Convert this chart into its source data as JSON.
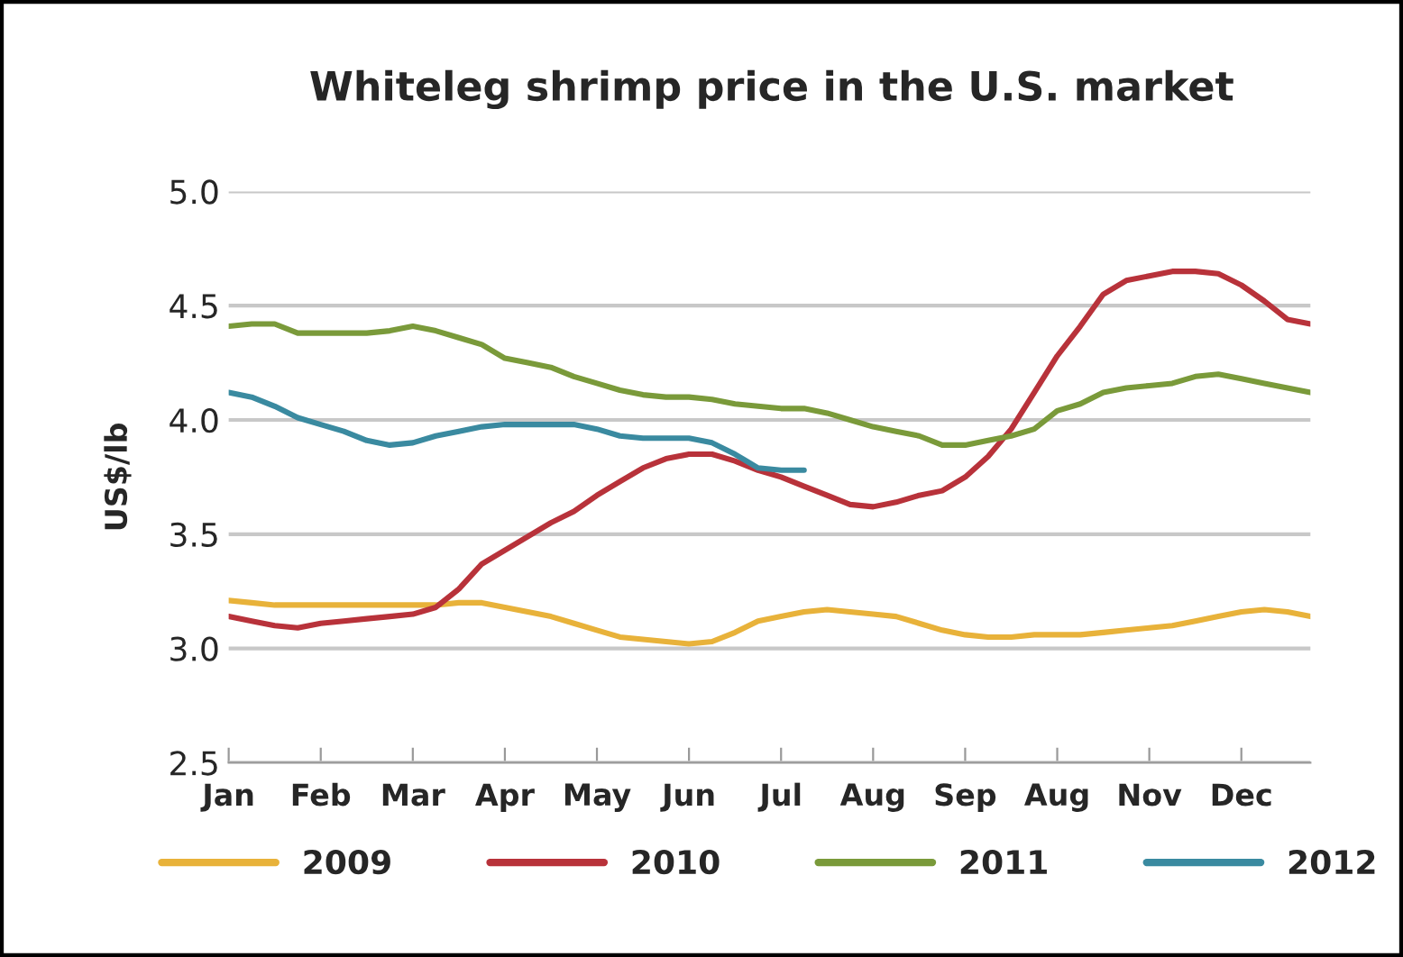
{
  "chart_data": {
    "type": "line",
    "title": "Whiteleg shrimp price in the U.S. market",
    "ylabel": "US$/lb",
    "categories": [
      "Jan",
      null,
      null,
      null,
      "Feb",
      null,
      null,
      null,
      "Mar",
      null,
      null,
      null,
      "Apr",
      null,
      null,
      null,
      "May",
      null,
      null,
      null,
      "Jun",
      null,
      null,
      null,
      "Jul",
      null,
      null,
      null,
      "Aug",
      null,
      null,
      null,
      "Sep",
      null,
      null,
      null,
      "Aug",
      null,
      null,
      null,
      "Nov",
      null,
      null,
      null,
      "Dec",
      null,
      null,
      null
    ],
    "ylim": [
      2.5,
      5.0
    ],
    "yticks": [
      2.5,
      {
        "value": 3,
        "label": "3.0"
      },
      3.5,
      {
        "value": 4,
        "label": "4.0"
      },
      4.5,
      {
        "value": 5,
        "label": "5.0"
      }
    ],
    "grid": "y",
    "legend": "bottom",
    "line_style": "solid",
    "marker": "none",
    "series": [
      {
        "name": "2009",
        "color": "#e8b23a",
        "values": [
          3.21,
          3.2,
          3.19,
          3.19,
          3.19,
          3.19,
          3.19,
          3.19,
          3.19,
          3.19,
          3.2,
          3.2,
          3.18,
          3.16,
          3.14,
          3.11,
          3.08,
          3.05,
          3.04,
          3.03,
          3.02,
          3.03,
          3.07,
          3.12,
          3.14,
          3.16,
          3.17,
          3.16,
          3.15,
          3.14,
          3.11,
          3.08,
          3.06,
          3.05,
          3.05,
          3.06,
          3.06,
          3.06,
          3.07,
          3.08,
          3.09,
          3.1,
          3.12,
          3.14,
          3.16,
          3.17,
          3.16,
          3.14
        ]
      },
      {
        "name": "2010",
        "color": "#b8323a",
        "values": [
          3.14,
          3.12,
          3.1,
          3.09,
          3.11,
          3.12,
          3.13,
          3.14,
          3.15,
          3.18,
          3.26,
          3.37,
          3.43,
          3.49,
          3.55,
          3.6,
          3.67,
          3.73,
          3.79,
          3.83,
          3.85,
          3.85,
          3.82,
          3.78,
          3.75,
          3.71,
          3.67,
          3.63,
          3.62,
          3.64,
          3.67,
          3.69,
          3.75,
          3.84,
          3.96,
          4.12,
          4.28,
          4.41,
          4.55,
          4.61,
          4.63,
          4.65,
          4.65,
          4.64,
          4.59,
          4.52,
          4.44,
          4.42
        ]
      },
      {
        "name": "2011",
        "color": "#7a9a3a",
        "values": [
          4.41,
          4.42,
          4.42,
          4.38,
          4.38,
          4.38,
          4.38,
          4.39,
          4.41,
          4.39,
          4.36,
          4.33,
          4.27,
          4.25,
          4.23,
          4.19,
          4.16,
          4.13,
          4.11,
          4.1,
          4.1,
          4.09,
          4.07,
          4.06,
          4.05,
          4.05,
          4.03,
          4.0,
          3.97,
          3.95,
          3.93,
          3.89,
          3.89,
          3.91,
          3.93,
          3.96,
          4.04,
          4.07,
          4.12,
          4.14,
          4.15,
          4.16,
          4.19,
          4.2,
          4.18,
          4.16,
          4.14,
          4.12
        ]
      },
      {
        "name": "2012",
        "color": "#3a8aa0",
        "values": [
          4.12,
          4.1,
          4.06,
          4.01,
          3.98,
          3.95,
          3.91,
          3.89,
          3.9,
          3.93,
          3.95,
          3.97,
          3.98,
          3.98,
          3.98,
          3.98,
          3.96,
          3.93,
          3.92,
          3.92,
          3.92,
          3.9,
          3.85,
          3.79,
          3.78,
          3.78,
          null,
          null,
          null,
          null,
          null,
          null,
          null,
          null,
          null,
          null,
          null,
          null,
          null,
          null,
          null,
          null,
          null,
          null,
          null,
          null,
          null,
          null
        ]
      }
    ]
  }
}
